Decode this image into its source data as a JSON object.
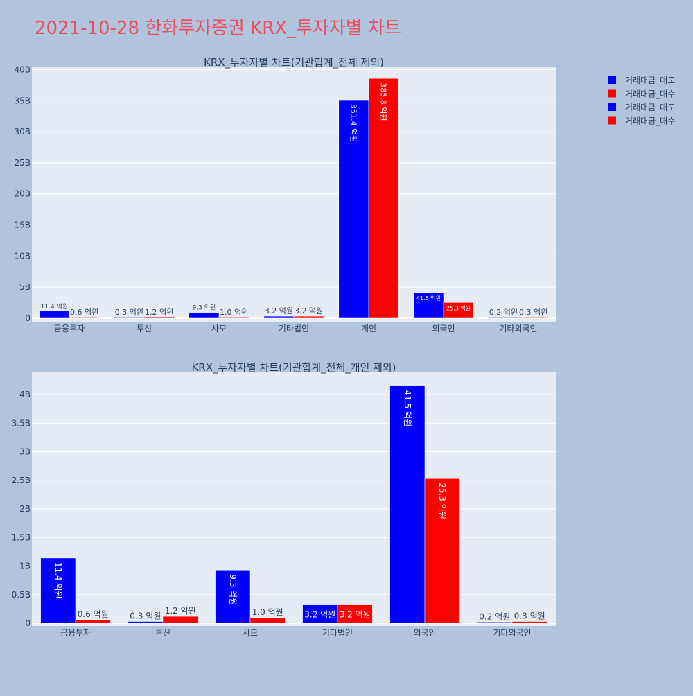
{
  "page_title": "2021-10-28 한화투자증권 KRX_투자자별 차트",
  "colors": {
    "background": "#b0c4de",
    "plot_bg": "#e5ecf6",
    "title": "#ef4d5e",
    "sell": "#0000ff",
    "buy": "#ff0000"
  },
  "legend": {
    "placement": "top-right",
    "items": [
      {
        "label": "거래대금_매도",
        "color": "#0000ff"
      },
      {
        "label": "거래대금_매수",
        "color": "#ff0000"
      },
      {
        "label": "거래대금_매도",
        "color": "#0000ff"
      },
      {
        "label": "거래대금_매수",
        "color": "#ff0000"
      }
    ]
  },
  "chart_data": [
    {
      "type": "bar",
      "title": "KRX_투자자별 차트(기관합계_전체 제외)",
      "categories": [
        "금융투자",
        "투신",
        "사모",
        "기타법인",
        "개인",
        "외국인",
        "기타외국인"
      ],
      "ylim": [
        0,
        40500000000
      ],
      "yticks": [
        0,
        5000000000,
        10000000000,
        15000000000,
        20000000000,
        25000000000,
        30000000000,
        35000000000,
        40000000000
      ],
      "ytick_labels": [
        "0",
        "5B",
        "10B",
        "15B",
        "20B",
        "25B",
        "30B",
        "35B",
        "40B"
      ],
      "grid": true,
      "series": [
        {
          "name": "거래대금_매도",
          "color": "#0000ff",
          "values": [
            1140000000,
            30000000,
            930000000,
            320000000,
            35140000000,
            4150000000,
            20000000
          ],
          "labels": [
            "11.4 억원",
            "0.3 억원",
            "9.3 억원",
            "3.2 억원",
            "351.4 억원",
            "41.5 억원",
            "0.2 억원"
          ]
        },
        {
          "name": "거래대금_매수",
          "color": "#ff0000",
          "values": [
            60000000,
            120000000,
            100000000,
            320000000,
            38580000000,
            2530000000,
            30000000
          ],
          "labels": [
            "0.6 억원",
            "1.2 억원",
            "1.0 억원",
            "3.2 억원",
            "385.8 억원",
            "25.3 억원",
            "0.3 억원"
          ]
        }
      ]
    },
    {
      "type": "bar",
      "title": "KRX_투자자별 차트(기관합계_전체_개인 제외)",
      "categories": [
        "금융투자",
        "투신",
        "사모",
        "기타법인",
        "외국인",
        "기타외국인"
      ],
      "ylim": [
        0,
        4400000000
      ],
      "yticks": [
        0,
        500000000,
        1000000000,
        1500000000,
        2000000000,
        2500000000,
        3000000000,
        3500000000,
        4000000000
      ],
      "ytick_labels": [
        "0",
        "0.5B",
        "1B",
        "1.5B",
        "2B",
        "2.5B",
        "3B",
        "3.5B",
        "4B"
      ],
      "grid": true,
      "series": [
        {
          "name": "거래대금_매도",
          "color": "#0000ff",
          "values": [
            1140000000,
            30000000,
            930000000,
            320000000,
            4150000000,
            20000000
          ],
          "labels": [
            "11.4 억원",
            "0.3 억원",
            "9.3 억원",
            "3.2 억원",
            "41.5 억원",
            "0.2 억원"
          ]
        },
        {
          "name": "거래대금_매수",
          "color": "#ff0000",
          "values": [
            60000000,
            120000000,
            100000000,
            320000000,
            2530000000,
            30000000
          ],
          "labels": [
            "0.6 억원",
            "1.2 억원",
            "1.0 억원",
            "3.2 억원",
            "25.3 억원",
            "0.3 억원"
          ]
        }
      ]
    }
  ]
}
